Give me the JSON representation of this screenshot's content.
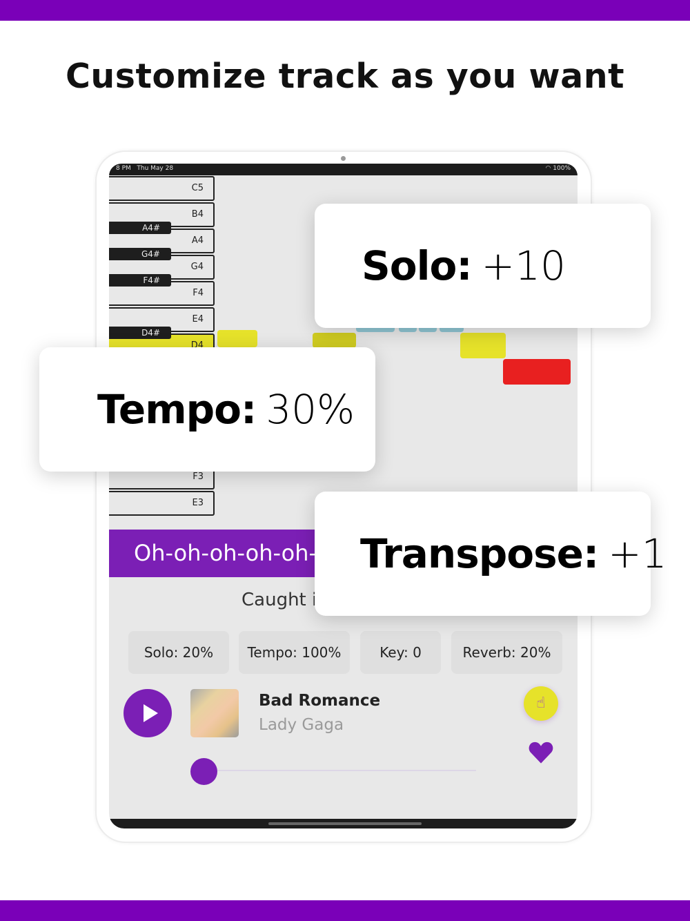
{
  "headline": "Customize track as you want",
  "colors": {
    "brand": "#7a00b8",
    "accent_purple": "#7b1fb5",
    "note_yellow": "#e6e22a",
    "note_red": "#e82020",
    "note_blue": "#8fc5d2"
  },
  "status_bar": {
    "time": "8 PM",
    "date": "Thu May 28",
    "battery": "100%"
  },
  "piano": {
    "white_keys": [
      "C5",
      "B4",
      "A4",
      "G4",
      "F4",
      "E4",
      "D4",
      "F3",
      "E3"
    ],
    "black_keys": [
      "A4#",
      "G4#",
      "F4#",
      "D4#"
    ],
    "active_key": "D4"
  },
  "cards": {
    "solo": {
      "label": "Solo:",
      "value": "+10"
    },
    "tempo": {
      "label": "Tempo:",
      "value": "30%"
    },
    "transpose": {
      "label": "Transpose:",
      "value": "+1"
    }
  },
  "lyrics": {
    "current": "Oh-oh-oh-oh-oh-",
    "next": "Caught i"
  },
  "chips": [
    {
      "label": "Solo: 20%"
    },
    {
      "label": "Tempo: 100%"
    },
    {
      "label": "Key: 0"
    },
    {
      "label": "Reverb: 20%"
    }
  ],
  "player": {
    "title": "Bad Romance",
    "artist": "Lady Gaga",
    "progress": 0.0,
    "icons": {
      "play": "play-icon",
      "touch": "touch-icon",
      "favorite": "heart-icon"
    }
  }
}
